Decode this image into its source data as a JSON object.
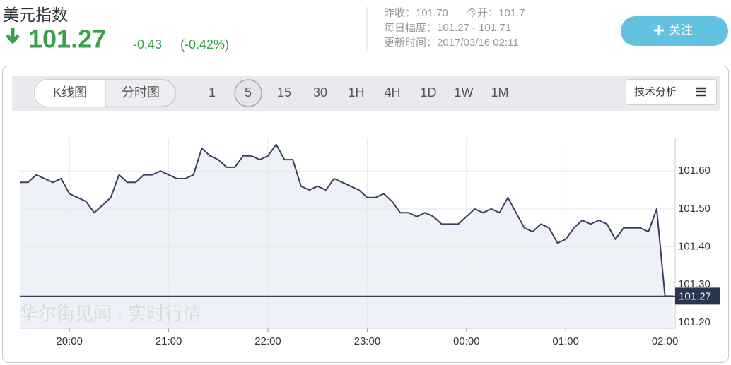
{
  "header": {
    "title": "美元指数",
    "price": "101.27",
    "change": "-0.43",
    "change_pct": "(-0.42%)",
    "prev_close": "昨收：101.70",
    "open": "今开：101.7",
    "day_range": "每日幅度：101.27 - 101.71",
    "updated": "更新时间：2017/03/16 02:11",
    "follow_button": "关注"
  },
  "toolbar": {
    "tabs": [
      "K线图",
      "分时图"
    ],
    "intervals": [
      "1",
      "5",
      "15",
      "30",
      "1H",
      "4H",
      "1D",
      "1W",
      "1M"
    ],
    "analysis_button": "技术分析"
  },
  "watermark": "华尔街见闻 · 实时行情",
  "chart_data": {
    "type": "line",
    "color": "#3a3f5c",
    "area_color": "#eef1f7",
    "categories": [
      null,
      null,
      null,
      null,
      null,
      null,
      "20:00",
      null,
      null,
      null,
      null,
      null,
      null,
      null,
      null,
      null,
      null,
      null,
      "21:00",
      null,
      null,
      null,
      null,
      null,
      null,
      null,
      null,
      null,
      null,
      null,
      "22:00",
      null,
      null,
      null,
      null,
      null,
      null,
      null,
      null,
      null,
      null,
      null,
      "23:00",
      null,
      null,
      null,
      null,
      null,
      null,
      null,
      null,
      null,
      null,
      null,
      "00:00",
      null,
      null,
      null,
      null,
      null,
      null,
      null,
      null,
      null,
      null,
      null,
      "01:00",
      null,
      null,
      null,
      null,
      null,
      null,
      null,
      null,
      null,
      null,
      null,
      "02:00",
      null
    ],
    "values": [
      101.57,
      101.57,
      101.59,
      101.58,
      101.57,
      101.58,
      101.54,
      101.53,
      101.52,
      101.49,
      101.51,
      101.53,
      101.59,
      101.57,
      101.57,
      101.59,
      101.59,
      101.6,
      101.59,
      101.58,
      101.58,
      101.59,
      101.66,
      101.64,
      101.63,
      101.61,
      101.61,
      101.64,
      101.64,
      101.63,
      101.64,
      101.67,
      101.63,
      101.63,
      101.56,
      101.55,
      101.56,
      101.55,
      101.58,
      101.57,
      101.56,
      101.55,
      101.53,
      101.53,
      101.54,
      101.52,
      101.49,
      101.49,
      101.48,
      101.49,
      101.48,
      101.46,
      101.46,
      101.46,
      101.48,
      101.5,
      101.49,
      101.5,
      101.49,
      101.53,
      101.49,
      101.45,
      101.44,
      101.46,
      101.45,
      101.41,
      101.42,
      101.45,
      101.47,
      101.46,
      101.47,
      101.46,
      101.42,
      101.45,
      101.45,
      101.45,
      101.44,
      101.5,
      101.27,
      101.27
    ],
    "ylim": [
      101.185,
      101.688
    ],
    "yticks": [
      {
        "value": 101.2,
        "label": "101.20"
      },
      {
        "value": 101.3,
        "label": "101.30"
      },
      {
        "value": 101.4,
        "label": "101.40"
      },
      {
        "value": 101.5,
        "label": "101.50"
      },
      {
        "value": 101.6,
        "label": "101.60"
      }
    ],
    "grid": true
  }
}
